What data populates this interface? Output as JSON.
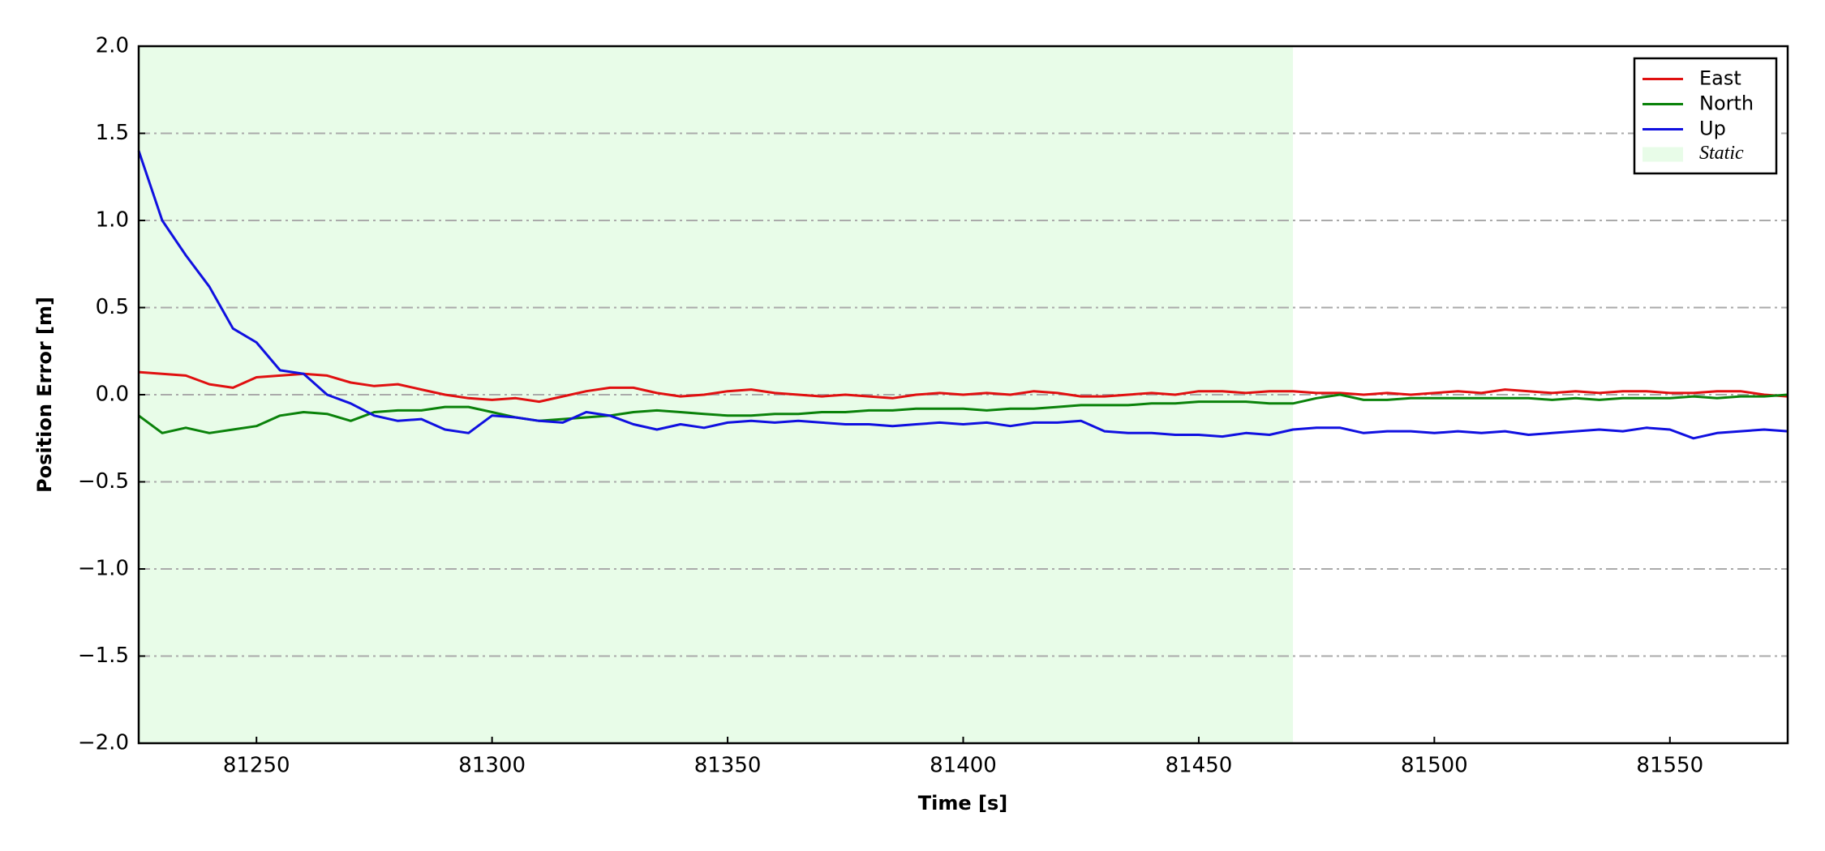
{
  "chart_data": {
    "type": "line",
    "xlabel": "Time [s]",
    "ylabel": "Position Error [m]",
    "xlim": [
      81225,
      81575
    ],
    "ylim": [
      -2,
      2
    ],
    "xticks": [
      81250,
      81300,
      81350,
      81400,
      81450,
      81500,
      81550
    ],
    "yticks": [
      {
        "value": -2,
        "label": "−2.0"
      },
      {
        "value": -1.5,
        "label": "−1.5"
      },
      {
        "value": -1,
        "label": "−1.0"
      },
      {
        "value": -0.5,
        "label": "−0.5"
      },
      {
        "value": 0,
        "label": "0.0"
      },
      {
        "value": 0.5,
        "label": "0.5"
      },
      {
        "value": 1,
        "label": "1.0"
      },
      {
        "value": 1.5,
        "label": "1.5"
      },
      {
        "value": 2,
        "label": "2.0"
      }
    ],
    "grid": true,
    "legend": "upper right",
    "shaded": {
      "name": "Static",
      "x": [
        81225,
        81470
      ],
      "color": "#e8fce8"
    },
    "x": [
      81225,
      81230,
      81235,
      81240,
      81245,
      81250,
      81255,
      81260,
      81265,
      81270,
      81275,
      81280,
      81285,
      81290,
      81295,
      81300,
      81305,
      81310,
      81315,
      81320,
      81325,
      81330,
      81335,
      81340,
      81345,
      81350,
      81355,
      81360,
      81365,
      81370,
      81375,
      81380,
      81385,
      81390,
      81395,
      81400,
      81405,
      81410,
      81415,
      81420,
      81425,
      81430,
      81435,
      81440,
      81445,
      81450,
      81455,
      81460,
      81465,
      81470,
      81475,
      81480,
      81485,
      81490,
      81495,
      81500,
      81505,
      81510,
      81515,
      81520,
      81525,
      81530,
      81535,
      81540,
      81545,
      81550,
      81555,
      81560,
      81565,
      81570,
      81575
    ],
    "series": [
      {
        "name": "East",
        "color": "#e01010",
        "values": [
          0.13,
          0.12,
          0.11,
          0.06,
          0.04,
          0.1,
          0.11,
          0.12,
          0.11,
          0.07,
          0.05,
          0.06,
          0.03,
          0.0,
          -0.02,
          -0.03,
          -0.02,
          -0.04,
          -0.01,
          0.02,
          0.04,
          0.04,
          0.01,
          -0.01,
          0.0,
          0.02,
          0.03,
          0.01,
          0.0,
          -0.01,
          0.0,
          -0.01,
          -0.02,
          0.0,
          0.01,
          0.0,
          0.01,
          0.0,
          0.02,
          0.01,
          -0.01,
          -0.01,
          0.0,
          0.01,
          0.0,
          0.02,
          0.02,
          0.01,
          0.02,
          0.02,
          0.01,
          0.01,
          0.0,
          0.01,
          0.0,
          0.01,
          0.02,
          0.01,
          0.03,
          0.02,
          0.01,
          0.02,
          0.01,
          0.02,
          0.02,
          0.01,
          0.01,
          0.02,
          0.02,
          0.0,
          -0.01
        ]
      },
      {
        "name": "North",
        "color": "#0a820a",
        "values": [
          -0.12,
          -0.22,
          -0.19,
          -0.22,
          -0.2,
          -0.18,
          -0.12,
          -0.1,
          -0.11,
          -0.15,
          -0.1,
          -0.09,
          -0.09,
          -0.07,
          -0.07,
          -0.1,
          -0.13,
          -0.15,
          -0.14,
          -0.13,
          -0.12,
          -0.1,
          -0.09,
          -0.1,
          -0.11,
          -0.12,
          -0.12,
          -0.11,
          -0.11,
          -0.1,
          -0.1,
          -0.09,
          -0.09,
          -0.08,
          -0.08,
          -0.08,
          -0.09,
          -0.08,
          -0.08,
          -0.07,
          -0.06,
          -0.06,
          -0.06,
          -0.05,
          -0.05,
          -0.04,
          -0.04,
          -0.04,
          -0.05,
          -0.05,
          -0.02,
          0.0,
          -0.03,
          -0.03,
          -0.02,
          -0.02,
          -0.02,
          -0.02,
          -0.02,
          -0.02,
          -0.03,
          -0.02,
          -0.03,
          -0.02,
          -0.02,
          -0.02,
          -0.01,
          -0.02,
          -0.01,
          -0.01,
          0.0
        ]
      },
      {
        "name": "Up",
        "color": "#1010e0",
        "values": [
          1.4,
          1.0,
          0.8,
          0.62,
          0.38,
          0.3,
          0.14,
          0.12,
          0.0,
          -0.05,
          -0.12,
          -0.15,
          -0.14,
          -0.2,
          -0.22,
          -0.12,
          -0.13,
          -0.15,
          -0.16,
          -0.1,
          -0.12,
          -0.17,
          -0.2,
          -0.17,
          -0.19,
          -0.16,
          -0.15,
          -0.16,
          -0.15,
          -0.16,
          -0.17,
          -0.17,
          -0.18,
          -0.17,
          -0.16,
          -0.17,
          -0.16,
          -0.18,
          -0.16,
          -0.16,
          -0.15,
          -0.21,
          -0.22,
          -0.22,
          -0.23,
          -0.23,
          -0.24,
          -0.22,
          -0.23,
          -0.2,
          -0.19,
          -0.19,
          -0.22,
          -0.21,
          -0.21,
          -0.22,
          -0.21,
          -0.22,
          -0.21,
          -0.23,
          -0.22,
          -0.21,
          -0.2,
          -0.21,
          -0.19,
          -0.2,
          -0.25,
          -0.22,
          -0.21,
          -0.2,
          -0.21
        ]
      }
    ]
  }
}
